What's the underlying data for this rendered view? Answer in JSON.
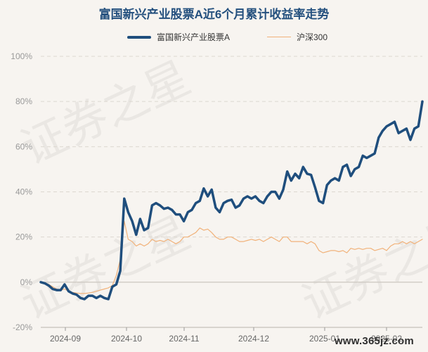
{
  "chart_data": {
    "type": "line",
    "title": "富国新兴产业股票A近6个月累计收益率走势",
    "legend_position": "top-center",
    "grid": true,
    "y_ticks": [
      "100%",
      "80%",
      "60%",
      "40%",
      "20%",
      "0%",
      "-20%"
    ],
    "ylim": [
      -20,
      100
    ],
    "x_ticks": [
      "2024-09",
      "2024-10",
      "2024-11",
      "2024-12",
      "2025-01",
      "2025-02"
    ],
    "series": [
      {
        "name": "富国新兴产业股票A",
        "color": "#1f4e7d",
        "values": [
          0,
          -0.5,
          -1.5,
          -3,
          -3.5,
          -3.5,
          -1,
          -4,
          -5,
          -5.5,
          -7,
          -7.5,
          -6,
          -6,
          -7,
          -6,
          -7,
          -7.5,
          -2,
          -1,
          5,
          37,
          31,
          27,
          21,
          28,
          23,
          24,
          34,
          35,
          34,
          32.5,
          33,
          32,
          30,
          30,
          27,
          31,
          32,
          35,
          36,
          41.5,
          38,
          41,
          33,
          31,
          35,
          36,
          36.5,
          33,
          34,
          37,
          38,
          37,
          38,
          36,
          35,
          38,
          40,
          40,
          37,
          41,
          49,
          45,
          48,
          46,
          51,
          48,
          47.5,
          42,
          36,
          35,
          43,
          45,
          46,
          45,
          51,
          52,
          47,
          50,
          51,
          56,
          55,
          56,
          57,
          64,
          67,
          69,
          70,
          71,
          66,
          67,
          68,
          63,
          68,
          69,
          80
        ]
      },
      {
        "name": "沪深300",
        "color": "#f1b27a",
        "values": [
          0,
          -0.2,
          -1,
          -2,
          -3,
          -3.5,
          -3,
          -4,
          -4.5,
          -4.8,
          -5,
          -5,
          -4.8,
          -4.5,
          -4,
          -3.5,
          -3,
          -2.5,
          -1.5,
          3,
          10,
          27,
          19,
          18,
          16,
          17,
          16,
          17,
          19,
          18,
          18.5,
          18,
          19,
          18,
          17,
          18,
          20,
          20,
          21,
          22,
          24,
          23,
          23.5,
          22,
          20,
          19,
          19,
          20,
          20,
          19,
          18,
          18,
          18.5,
          19,
          18.5,
          19,
          18,
          19,
          20,
          19,
          18,
          20,
          20,
          18,
          18,
          18,
          18,
          17,
          18,
          17,
          14,
          13,
          13.5,
          14,
          14,
          13.5,
          14,
          13,
          15,
          14.5,
          15,
          14.5,
          15,
          15,
          14,
          14.5,
          15,
          14,
          16,
          17,
          17,
          18,
          17,
          18,
          17,
          18,
          19
        ]
      }
    ]
  },
  "watermark_text": "证券之星",
  "source_text": "www.365jz.com"
}
